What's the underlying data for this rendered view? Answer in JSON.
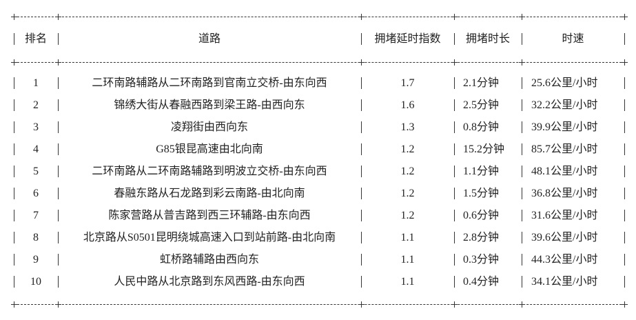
{
  "table": {
    "headers": [
      "排名",
      "道路",
      "拥堵延时指数",
      "拥堵时长",
      "时速"
    ],
    "rows": [
      [
        "1",
        "二环南路辅路从二环南路到官南立交桥-由东向西",
        "1.7",
        "2.1分钟",
        "25.6公里/小时"
      ],
      [
        "2",
        "锦绣大街从春融西路到梁王路-由西向东",
        "1.6",
        "2.5分钟",
        "32.2公里/小时"
      ],
      [
        "3",
        "凌翔街由西向东",
        "1.3",
        "0.8分钟",
        "39.9公里/小时"
      ],
      [
        "4",
        "G85银昆高速由北向南",
        "1.2",
        "15.2分钟",
        "85.7公里/小时"
      ],
      [
        "5",
        "二环南路从二环南路辅路到明波立交桥-由东向西",
        "1.2",
        "1.1分钟",
        "48.1公里/小时"
      ],
      [
        "6",
        "春融东路从石龙路到彩云南路-由北向南",
        "1.2",
        "1.5分钟",
        "36.8公里/小时"
      ],
      [
        "7",
        "陈家营路从普吉路到西三环辅路-由东向西",
        "1.2",
        "0.6分钟",
        "31.6公里/小时"
      ],
      [
        "8",
        "北京路从S0501昆明绕城高速入口到站前路-由北向南",
        "1.1",
        "2.8分钟",
        "39.6公里/小时"
      ],
      [
        "9",
        "虹桥路辅路由西向东",
        "1.1",
        "0.3分钟",
        "44.3公里/小时"
      ],
      [
        "10",
        "人民中路从北京路到东风西路-由东向西",
        "1.1",
        "0.4分钟",
        "34.1公里/小时"
      ]
    ]
  }
}
